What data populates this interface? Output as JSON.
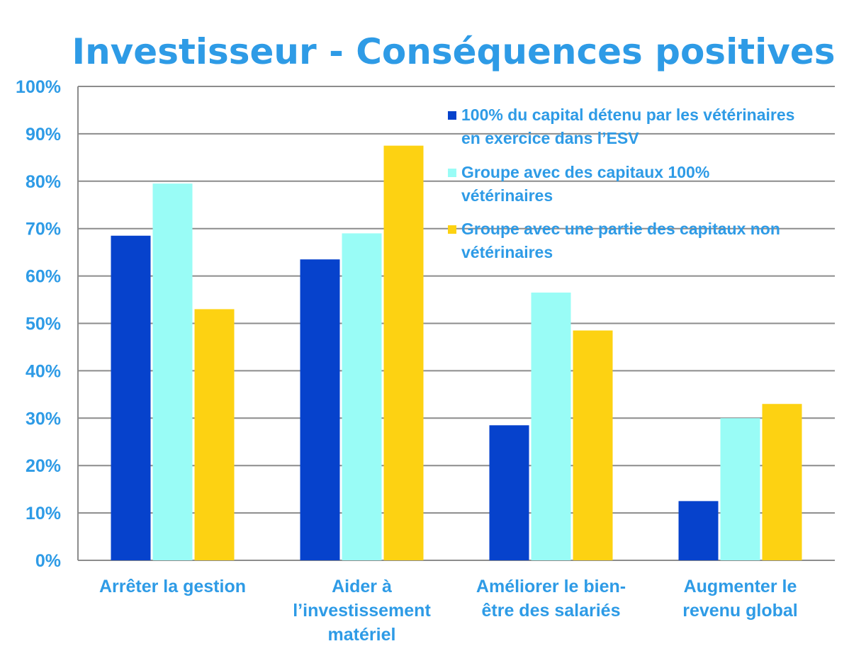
{
  "chart_data": {
    "type": "bar",
    "title": "Investisseur - Conséquences positives",
    "categories": [
      [
        "Arrêter la gestion"
      ],
      [
        "Aider à",
        "l’investissement",
        "matériel"
      ],
      [
        "Améliorer le bien-",
        "être des salariés"
      ],
      [
        "Augmenter le",
        "revenu global"
      ]
    ],
    "series": [
      {
        "name": [
          "100% du capital détenu par les vétérinaires",
          "en exercice dans l’ESV"
        ],
        "color": "#0642cc",
        "values": [
          68.5,
          63.5,
          28.5,
          12.5
        ]
      },
      {
        "name": [
          "Groupe avec des capitaux 100%",
          "vétérinaires"
        ],
        "color": "#99fcf6",
        "values": [
          79.5,
          69,
          56.5,
          30
        ]
      },
      {
        "name": [
          "Groupe avec une partie des capitaux non",
          "vétérinaires"
        ],
        "color": "#fdd212",
        "values": [
          53,
          87.5,
          48.5,
          33
        ]
      }
    ],
    "y_ticks": [
      "0%",
      "10%",
      "20%",
      "30%",
      "40%",
      "50%",
      "60%",
      "70%",
      "80%",
      "90%",
      "100%"
    ],
    "ylim": [
      0,
      100
    ],
    "grid": true,
    "legend_position": "top-right",
    "xlabel": "",
    "ylabel": ""
  }
}
